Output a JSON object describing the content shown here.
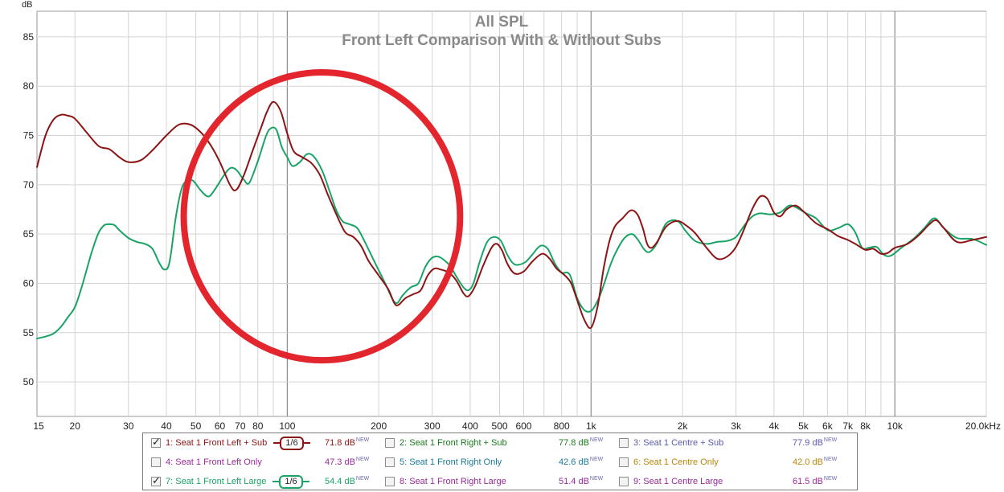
{
  "chart_data": {
    "type": "line",
    "title": "All SPL",
    "subtitle": "Front Left Comparison With & Without Subs",
    "ylabel": "dB",
    "xscale": "log",
    "xlim": [
      15,
      20000
    ],
    "ylim": [
      46.5,
      87.6
    ],
    "yticks": [
      50,
      55,
      60,
      65,
      70,
      75,
      80,
      85
    ],
    "ytick_labels": [
      "50",
      "55",
      "60",
      "65",
      "70",
      "75",
      "80",
      "85"
    ],
    "xticks": [
      {
        "v": 15,
        "label": "15"
      },
      {
        "v": 20,
        "label": "20"
      },
      {
        "v": 30,
        "label": "30"
      },
      {
        "v": 40,
        "label": "40"
      },
      {
        "v": 50,
        "label": "50"
      },
      {
        "v": 60,
        "label": "60"
      },
      {
        "v": 70,
        "label": "70"
      },
      {
        "v": 80,
        "label": "80"
      },
      {
        "v": 100,
        "label": "100"
      },
      {
        "v": 200,
        "label": "200"
      },
      {
        "v": 300,
        "label": "300"
      },
      {
        "v": 400,
        "label": "400"
      },
      {
        "v": 500,
        "label": "500"
      },
      {
        "v": 600,
        "label": "600"
      },
      {
        "v": 800,
        "label": "800"
      },
      {
        "v": 1000,
        "label": "1k"
      },
      {
        "v": 2000,
        "label": "2k"
      },
      {
        "v": 3000,
        "label": "3k"
      },
      {
        "v": 4000,
        "label": "4k"
      },
      {
        "v": 5000,
        "label": "5k"
      },
      {
        "v": 6000,
        "label": "6k"
      },
      {
        "v": 7000,
        "label": "7k"
      },
      {
        "v": 8000,
        "label": "8k"
      },
      {
        "v": 10000,
        "label": "10k"
      },
      {
        "v": 20000,
        "label": "20.0kHz"
      }
    ],
    "grid": true,
    "annotation": {
      "shape": "circle",
      "color": "#e3262e",
      "center_hz": 130,
      "center_db": 66.8,
      "radius_db": 14.6
    },
    "series": [
      {
        "name": "1: Seat 1 Front Left + Sub",
        "color": "#8b1414",
        "points": [
          [
            15,
            71.8
          ],
          [
            16,
            75.0
          ],
          [
            17,
            76.6
          ],
          [
            18,
            77.1
          ],
          [
            19,
            77.0
          ],
          [
            20,
            76.7
          ],
          [
            22,
            75.2
          ],
          [
            24,
            73.9
          ],
          [
            26,
            73.6
          ],
          [
            28,
            72.8
          ],
          [
            30,
            72.3
          ],
          [
            33,
            72.5
          ],
          [
            36,
            73.5
          ],
          [
            40,
            75.0
          ],
          [
            44,
            76.1
          ],
          [
            48,
            76.1
          ],
          [
            52,
            75.3
          ],
          [
            56,
            74.0
          ],
          [
            60,
            72.3
          ],
          [
            65,
            69.9
          ],
          [
            68,
            69.5
          ],
          [
            72,
            71.0
          ],
          [
            77,
            73.5
          ],
          [
            82,
            75.8
          ],
          [
            86,
            77.5
          ],
          [
            90,
            78.4
          ],
          [
            95,
            77.5
          ],
          [
            100,
            75.2
          ],
          [
            105,
            73.4
          ],
          [
            112,
            72.8
          ],
          [
            120,
            72.2
          ],
          [
            128,
            71.0
          ],
          [
            136,
            69.0
          ],
          [
            145,
            67.0
          ],
          [
            155,
            65.2
          ],
          [
            165,
            64.7
          ],
          [
            175,
            63.8
          ],
          [
            185,
            62.3
          ],
          [
            200,
            60.8
          ],
          [
            215,
            59.4
          ],
          [
            225,
            58.0
          ],
          [
            232,
            57.8
          ],
          [
            245,
            58.5
          ],
          [
            260,
            58.9
          ],
          [
            275,
            59.3
          ],
          [
            290,
            60.8
          ],
          [
            305,
            61.5
          ],
          [
            320,
            61.4
          ],
          [
            340,
            61.1
          ],
          [
            360,
            60.3
          ],
          [
            380,
            59.0
          ],
          [
            395,
            58.7
          ],
          [
            415,
            59.7
          ],
          [
            440,
            61.7
          ],
          [
            470,
            63.6
          ],
          [
            490,
            64.0
          ],
          [
            510,
            63.3
          ],
          [
            530,
            62.0
          ],
          [
            560,
            61.0
          ],
          [
            600,
            61.2
          ],
          [
            640,
            62.2
          ],
          [
            690,
            63.0
          ],
          [
            730,
            62.5
          ],
          [
            770,
            61.5
          ],
          [
            820,
            60.8
          ],
          [
            860,
            60.0
          ],
          [
            900,
            58.3
          ],
          [
            950,
            56.3
          ],
          [
            1000,
            55.5
          ],
          [
            1050,
            57.6
          ],
          [
            1100,
            61.5
          ],
          [
            1150,
            64.3
          ],
          [
            1200,
            65.8
          ],
          [
            1270,
            66.6
          ],
          [
            1350,
            67.4
          ],
          [
            1420,
            67.0
          ],
          [
            1480,
            65.6
          ],
          [
            1530,
            64.0
          ],
          [
            1580,
            63.6
          ],
          [
            1650,
            64.2
          ],
          [
            1750,
            65.6
          ],
          [
            1850,
            66.2
          ],
          [
            1950,
            66.3
          ],
          [
            2050,
            65.9
          ],
          [
            2200,
            65.1
          ],
          [
            2400,
            63.6
          ],
          [
            2600,
            62.5
          ],
          [
            2800,
            62.7
          ],
          [
            3000,
            63.7
          ],
          [
            3200,
            65.6
          ],
          [
            3400,
            67.6
          ],
          [
            3600,
            68.8
          ],
          [
            3800,
            68.6
          ],
          [
            4000,
            67.2
          ],
          [
            4200,
            66.8
          ],
          [
            4400,
            67.5
          ],
          [
            4700,
            67.9
          ],
          [
            5000,
            67.3
          ],
          [
            5500,
            66.1
          ],
          [
            6000,
            65.5
          ],
          [
            6500,
            64.8
          ],
          [
            7000,
            64.4
          ],
          [
            7500,
            63.9
          ],
          [
            8000,
            63.4
          ],
          [
            8500,
            63.5
          ],
          [
            9000,
            63.0
          ],
          [
            9500,
            63.1
          ],
          [
            10000,
            63.6
          ],
          [
            11000,
            64.0
          ],
          [
            12000,
            64.9
          ],
          [
            13000,
            66.0
          ],
          [
            13700,
            66.4
          ],
          [
            14500,
            65.6
          ],
          [
            16000,
            64.2
          ],
          [
            18000,
            64.4
          ],
          [
            20000,
            64.7
          ]
        ]
      },
      {
        "name": "7: Seat 1 Front Left Large",
        "color": "#1aa366",
        "points": [
          [
            15,
            54.4
          ],
          [
            16,
            54.6
          ],
          [
            17,
            54.9
          ],
          [
            18,
            55.6
          ],
          [
            19,
            56.6
          ],
          [
            20,
            57.6
          ],
          [
            21,
            59.5
          ],
          [
            22,
            61.7
          ],
          [
            23,
            63.7
          ],
          [
            24,
            65.2
          ],
          [
            25,
            65.9
          ],
          [
            26,
            66.0
          ],
          [
            27,
            65.9
          ],
          [
            28,
            65.4
          ],
          [
            30,
            64.6
          ],
          [
            32,
            64.2
          ],
          [
            34,
            64.0
          ],
          [
            36,
            63.5
          ],
          [
            38,
            62.0
          ],
          [
            39.5,
            61.4
          ],
          [
            41,
            62.2
          ],
          [
            43,
            66.8
          ],
          [
            45,
            69.7
          ],
          [
            47,
            70.4
          ],
          [
            49,
            70.4
          ],
          [
            52,
            69.4
          ],
          [
            55,
            68.8
          ],
          [
            58,
            69.6
          ],
          [
            62,
            71.0
          ],
          [
            65,
            71.7
          ],
          [
            68,
            71.5
          ],
          [
            72,
            70.5
          ],
          [
            75,
            70.2
          ],
          [
            80,
            72.4
          ],
          [
            85,
            74.9
          ],
          [
            88,
            75.7
          ],
          [
            92,
            75.6
          ],
          [
            96,
            73.8
          ],
          [
            100,
            72.8
          ],
          [
            104,
            71.9
          ],
          [
            110,
            72.3
          ],
          [
            116,
            73.1
          ],
          [
            122,
            72.9
          ],
          [
            130,
            71.5
          ],
          [
            138,
            69.3
          ],
          [
            145,
            67.4
          ],
          [
            152,
            66.3
          ],
          [
            160,
            66.0
          ],
          [
            170,
            65.6
          ],
          [
            180,
            64.2
          ],
          [
            195,
            62.0
          ],
          [
            210,
            60.0
          ],
          [
            222,
            58.4
          ],
          [
            230,
            58.0
          ],
          [
            240,
            58.8
          ],
          [
            255,
            59.6
          ],
          [
            270,
            60.0
          ],
          [
            285,
            61.7
          ],
          [
            300,
            62.6
          ],
          [
            315,
            62.7
          ],
          [
            330,
            62.3
          ],
          [
            345,
            61.7
          ],
          [
            360,
            60.7
          ],
          [
            380,
            59.6
          ],
          [
            395,
            59.3
          ],
          [
            410,
            60.0
          ],
          [
            430,
            62.2
          ],
          [
            455,
            64.2
          ],
          [
            480,
            64.7
          ],
          [
            505,
            64.3
          ],
          [
            530,
            62.9
          ],
          [
            555,
            62.0
          ],
          [
            580,
            61.9
          ],
          [
            610,
            62.2
          ],
          [
            640,
            62.9
          ],
          [
            680,
            63.8
          ],
          [
            720,
            63.5
          ],
          [
            760,
            62.0
          ],
          [
            800,
            61.1
          ],
          [
            850,
            60.9
          ],
          [
            900,
            58.5
          ],
          [
            950,
            57.3
          ],
          [
            1000,
            57.2
          ],
          [
            1050,
            58.2
          ],
          [
            1100,
            59.8
          ],
          [
            1150,
            61.6
          ],
          [
            1200,
            63.0
          ],
          [
            1280,
            64.5
          ],
          [
            1360,
            65.0
          ],
          [
            1420,
            64.5
          ],
          [
            1500,
            63.4
          ],
          [
            1560,
            63.2
          ],
          [
            1650,
            64.1
          ],
          [
            1750,
            65.9
          ],
          [
            1850,
            66.4
          ],
          [
            1950,
            66.2
          ],
          [
            2050,
            65.3
          ],
          [
            2200,
            64.3
          ],
          [
            2400,
            64.0
          ],
          [
            2600,
            64.2
          ],
          [
            2800,
            64.3
          ],
          [
            3000,
            64.7
          ],
          [
            3200,
            65.9
          ],
          [
            3400,
            66.8
          ],
          [
            3600,
            67.1
          ],
          [
            3900,
            67.0
          ],
          [
            4200,
            67.2
          ],
          [
            4500,
            67.9
          ],
          [
            4800,
            67.6
          ],
          [
            5100,
            67.1
          ],
          [
            5500,
            66.6
          ],
          [
            6000,
            65.4
          ],
          [
            6500,
            65.6
          ],
          [
            7000,
            66.0
          ],
          [
            7400,
            65.2
          ],
          [
            7800,
            63.6
          ],
          [
            8200,
            63.6
          ],
          [
            8700,
            63.7
          ],
          [
            9200,
            62.9
          ],
          [
            9700,
            62.8
          ],
          [
            10500,
            63.6
          ],
          [
            11500,
            64.5
          ],
          [
            12500,
            65.6
          ],
          [
            13500,
            66.6
          ],
          [
            14500,
            65.6
          ],
          [
            16000,
            64.6
          ],
          [
            18000,
            64.5
          ],
          [
            20000,
            63.9
          ]
        ]
      }
    ]
  },
  "legend": [
    {
      "checked": true,
      "label": "1: Seat 1 Front Left + Sub",
      "color": "#8b1414",
      "smoothing": "1/6",
      "value": "71.8 dB",
      "badge": "NEW"
    },
    {
      "checked": false,
      "label": "2: Seat 1 Front Right + Sub",
      "color": "#1a7a1a",
      "value": "77.8 dB",
      "badge": "NEW"
    },
    {
      "checked": false,
      "label": "3: Seat 1 Centre + Sub",
      "color": "#5a5ab0",
      "value": "77.9 dB",
      "badge": "NEW"
    },
    {
      "checked": false,
      "label": "4: Seat 1 Front Left Only",
      "color": "#9a2a9a",
      "value": "47.3 dB",
      "badge": "NEW"
    },
    {
      "checked": false,
      "label": "5: Seat 1 Front Right Only",
      "color": "#1a7a9a",
      "value": "42.6 dB",
      "badge": "NEW"
    },
    {
      "checked": false,
      "label": "6: Seat 1 Centre Only",
      "color": "#b8860b",
      "value": "42.0 dB",
      "badge": "NEW"
    },
    {
      "checked": true,
      "label": "7: Seat 1 Front Left Large",
      "color": "#1aa366",
      "smoothing": "1/6",
      "value": "54.4 dB",
      "badge": "NEW"
    },
    {
      "checked": false,
      "label": "8: Seat 1 Front Right Large",
      "color": "#9a2a9a",
      "value": "51.4 dB",
      "badge": "NEW"
    },
    {
      "checked": false,
      "label": "9: Seat 1 Centre Large",
      "color": "#9a2a9a",
      "value": "61.5 dB",
      "badge": "NEW"
    }
  ]
}
